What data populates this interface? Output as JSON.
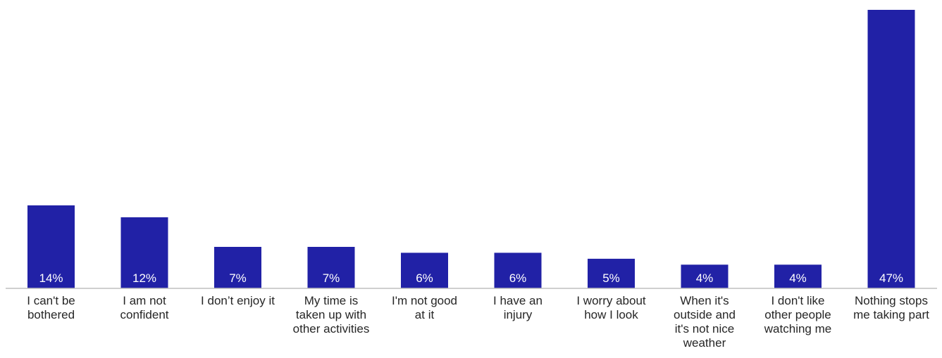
{
  "chart_data": {
    "type": "bar",
    "categories": [
      "I can't be bothered",
      "I am not confident",
      "I don't enjoy it",
      "My time is taken up with other activities",
      "I'm not good at it",
      "I have an injury",
      "I worry about how I look",
      "When it's outside and it's not nice weather",
      "I don't like other people watching me",
      "Nothing stops me taking part"
    ],
    "category_label_lines": [
      [
        "I can't be",
        "bothered"
      ],
      [
        "I am not",
        "confident"
      ],
      [
        "I don’t enjoy it"
      ],
      [
        "My time is",
        "taken up with",
        "other activities"
      ],
      [
        "I'm not good",
        "at it"
      ],
      [
        "I have an",
        "injury"
      ],
      [
        "I worry about",
        "how I look"
      ],
      [
        "When it's",
        "outside and",
        "it's not nice",
        "weather"
      ],
      [
        "I don't like",
        "other people",
        "watching me"
      ],
      [
        "Nothing stops",
        "me taking part"
      ]
    ],
    "values": [
      14,
      12,
      7,
      7,
      6,
      6,
      5,
      4,
      4,
      47
    ],
    "value_labels": [
      "14%",
      "12%",
      "7%",
      "7%",
      "6%",
      "6%",
      "5%",
      "4%",
      "4%",
      "47%"
    ],
    "unit": "%",
    "ylim": [
      0,
      47
    ],
    "grid": false,
    "legend": "none",
    "bar_color": "#2121a6",
    "axis_color": "#bfbfbf",
    "label_color": "#262626",
    "value_label_color": "#ffffff",
    "title": "",
    "xlabel": "",
    "ylabel": ""
  }
}
